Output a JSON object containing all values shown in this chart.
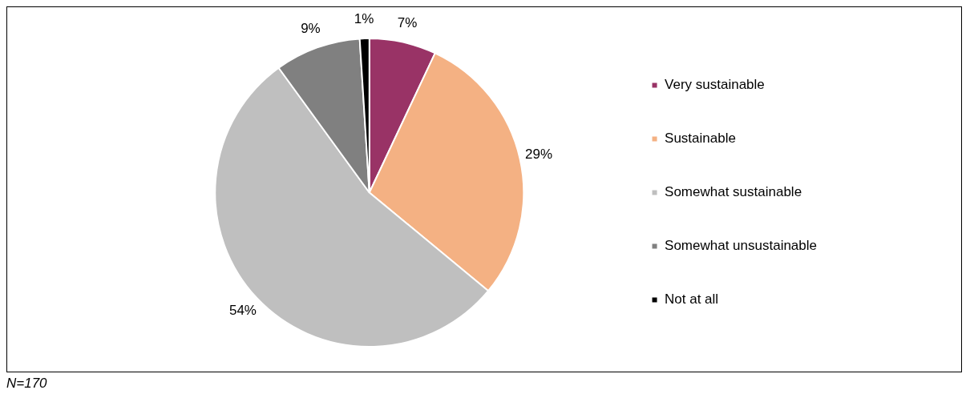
{
  "chart_data": {
    "type": "pie",
    "categories": [
      "Very sustainable",
      "Sustainable",
      "Somewhat sustainable",
      "Somewhat unsustainable",
      "Not at all"
    ],
    "values": [
      7,
      29,
      54,
      9,
      1
    ],
    "colors": [
      "#993366",
      "#f4b183",
      "#bfbfbf",
      "#808080",
      "#000000"
    ],
    "value_labels": [
      "7%",
      "29%",
      "54%",
      "9%",
      "1%"
    ],
    "legend": "right",
    "annotations": [
      "N=170"
    ]
  }
}
